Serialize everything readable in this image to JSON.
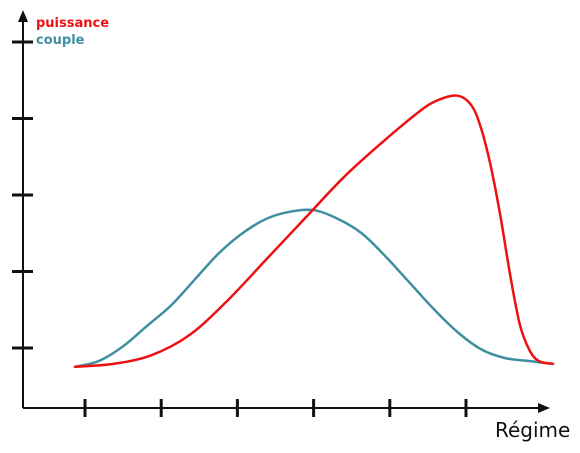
{
  "chart_data": {
    "type": "line",
    "xlabel": "Régime",
    "ylabel": "",
    "x_ticks": 6,
    "y_ticks": 5,
    "xlim": [
      0,
      100
    ],
    "ylim": [
      0,
      100
    ],
    "grid": false,
    "legend_position": "top-left",
    "series": [
      {
        "name": "puissance",
        "color": "#ee1111",
        "x": [
          0,
          8,
          16,
          24,
          32,
          40,
          48,
          56,
          64,
          72,
          76,
          80,
          83,
          85,
          87,
          89,
          91,
          93,
          95,
          97,
          100
        ],
        "y": [
          8,
          9,
          12,
          19,
          31,
          45,
          59,
          73,
          85,
          96,
          100,
          101.5,
          98,
          90,
          77,
          60,
          40,
          23,
          14,
          10,
          9
        ]
      },
      {
        "name": "couple",
        "color": "#3f8fa0",
        "x": [
          0,
          5,
          10,
          15,
          20,
          25,
          30,
          35,
          40,
          45,
          50,
          55,
          60,
          65,
          70,
          75,
          80,
          85,
          90,
          95,
          100
        ],
        "y": [
          8,
          10,
          15,
          22,
          29,
          38,
          47,
          54,
          59,
          61.5,
          62,
          59,
          54,
          46,
          37,
          28,
          20,
          14,
          11,
          10,
          9
        ]
      }
    ]
  }
}
